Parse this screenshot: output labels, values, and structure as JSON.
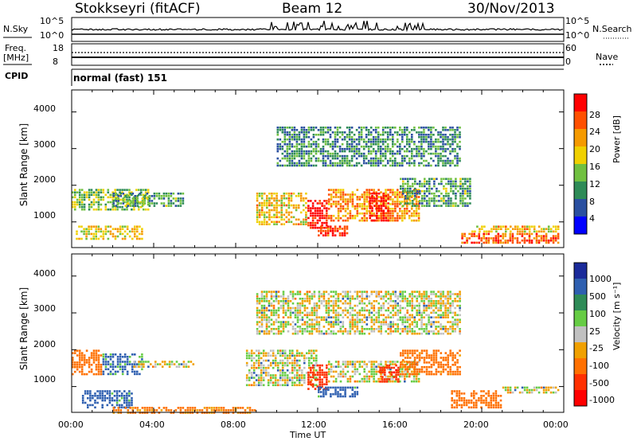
{
  "header": {
    "station": "Stokkseyri (fitACF)",
    "beam": "Beam 12",
    "date": "30/Nov/2013"
  },
  "panels": {
    "nsky": {
      "left_label": "N.Sky",
      "right_label": "N.Search",
      "left_ticks": [
        "10^5",
        "10^0"
      ],
      "right_ticks": [
        "10^5",
        "10^0"
      ]
    },
    "freq": {
      "left_label_top": "Freq.",
      "left_label_bottom": "[MHz]",
      "right_label": "Nave",
      "left_ticks": [
        "18",
        "8"
      ],
      "right_ticks": [
        "60",
        "0"
      ]
    },
    "cpid": {
      "label": "CPID",
      "value": "normal (fast) 151"
    }
  },
  "colors": {
    "power_scale": [
      "#0000ff",
      "#2a4fa0",
      "#2e8b57",
      "#70c040",
      "#f0d000",
      "#f59a00",
      "#ff5000",
      "#ff0000"
    ],
    "velocity_scale": [
      "#1a2a9a",
      "#2e5fb0",
      "#2e8b57",
      "#66cc44",
      "#c0c0c0",
      "#f0a000",
      "#ff7000",
      "#ff3000",
      "#ff0000"
    ]
  },
  "chart_data": [
    {
      "type": "heatmap",
      "name": "power",
      "xlabel": "",
      "ylabel": "Slant Range [km]",
      "yticks": [
        "1000",
        "2000",
        "3000",
        "4000"
      ],
      "ylim": [
        300,
        4600
      ],
      "colorbar_label": "Power [dB]",
      "colorbar_ticks": [
        "4",
        "8",
        "12",
        "16",
        "20",
        "24",
        "28"
      ],
      "clim": [
        0,
        30
      ],
      "features": [
        {
          "x": [
            0.0,
            3.8
          ],
          "y": [
            1300,
            1900
          ],
          "level": 0.45
        },
        {
          "x": [
            0.2,
            3.5
          ],
          "y": [
            500,
            900
          ],
          "level": 0.55
        },
        {
          "x": [
            2.0,
            5.5
          ],
          "y": [
            1400,
            1800
          ],
          "level": 0.35
        },
        {
          "x": [
            9.0,
            11.5
          ],
          "y": [
            900,
            1800
          ],
          "level": 0.6
        },
        {
          "x": [
            11.5,
            12.5
          ],
          "y": [
            800,
            1600
          ],
          "level": 0.95
        },
        {
          "x": [
            12.5,
            17.0
          ],
          "y": [
            1000,
            1900
          ],
          "level": 0.7
        },
        {
          "x": [
            14.5,
            15.5
          ],
          "y": [
            1000,
            1800
          ],
          "level": 0.95
        },
        {
          "x": [
            12.0,
            13.5
          ],
          "y": [
            600,
            900
          ],
          "level": 0.9
        },
        {
          "x": [
            16.0,
            19.5
          ],
          "y": [
            1400,
            2200
          ],
          "level": 0.35
        },
        {
          "x": [
            19.0,
            23.8
          ],
          "y": [
            400,
            700
          ],
          "level": 0.8
        },
        {
          "x": [
            19.5,
            23.8
          ],
          "y": [
            700,
            900
          ],
          "level": 0.6
        },
        {
          "x": [
            10.0,
            19.0
          ],
          "y": [
            2500,
            3600
          ],
          "level": 0.3
        }
      ]
    },
    {
      "type": "heatmap",
      "name": "velocity",
      "xlabel": "Time UT",
      "ylabel": "Slant Range [km]",
      "xticks": [
        "00:00",
        "04:00",
        "08:00",
        "12:00",
        "16:00",
        "20:00",
        "00:00"
      ],
      "xlim": [
        0,
        24
      ],
      "yticks": [
        "1000",
        "2000",
        "3000",
        "4000"
      ],
      "ylim": [
        300,
        4600
      ],
      "colorbar_label": "Velocity [m s⁻¹]",
      "colorbar_ticks": [
        "1000",
        "500",
        "100",
        "25",
        "-25",
        "-100",
        "-500",
        "-1000"
      ],
      "features": [
        {
          "x": [
            0.0,
            1.5
          ],
          "y": [
            1300,
            2000
          ],
          "value": -300
        },
        {
          "x": [
            1.5,
            3.5
          ],
          "y": [
            1300,
            1900
          ],
          "value": 150
        },
        {
          "x": [
            3.0,
            6.0
          ],
          "y": [
            1500,
            1700
          ],
          "value": 0
        },
        {
          "x": [
            0.5,
            3.0
          ],
          "y": [
            400,
            900
          ],
          "value": 200
        },
        {
          "x": [
            8.5,
            12.0
          ],
          "y": [
            1000,
            2000
          ],
          "value": 0
        },
        {
          "x": [
            11.5,
            12.5
          ],
          "y": [
            900,
            1600
          ],
          "value": -800
        },
        {
          "x": [
            12.0,
            14.0
          ],
          "y": [
            700,
            1000
          ],
          "value": 200
        },
        {
          "x": [
            12.5,
            17.0
          ],
          "y": [
            1100,
            1700
          ],
          "value": 0
        },
        {
          "x": [
            15.0,
            16.0
          ],
          "y": [
            1100,
            1600
          ],
          "value": -900
        },
        {
          "x": [
            16.0,
            19.0
          ],
          "y": [
            1300,
            2000
          ],
          "value": -200
        },
        {
          "x": [
            18.5,
            21.0
          ],
          "y": [
            400,
            900
          ],
          "value": -300
        },
        {
          "x": [
            21.0,
            23.8
          ],
          "y": [
            800,
            1000
          ],
          "value": 0
        },
        {
          "x": [
            9.0,
            19.0
          ],
          "y": [
            2400,
            3600
          ],
          "value": 0
        },
        {
          "x": [
            2.0,
            9.0
          ],
          "y": [
            250,
            450
          ],
          "value": -150
        }
      ]
    }
  ]
}
